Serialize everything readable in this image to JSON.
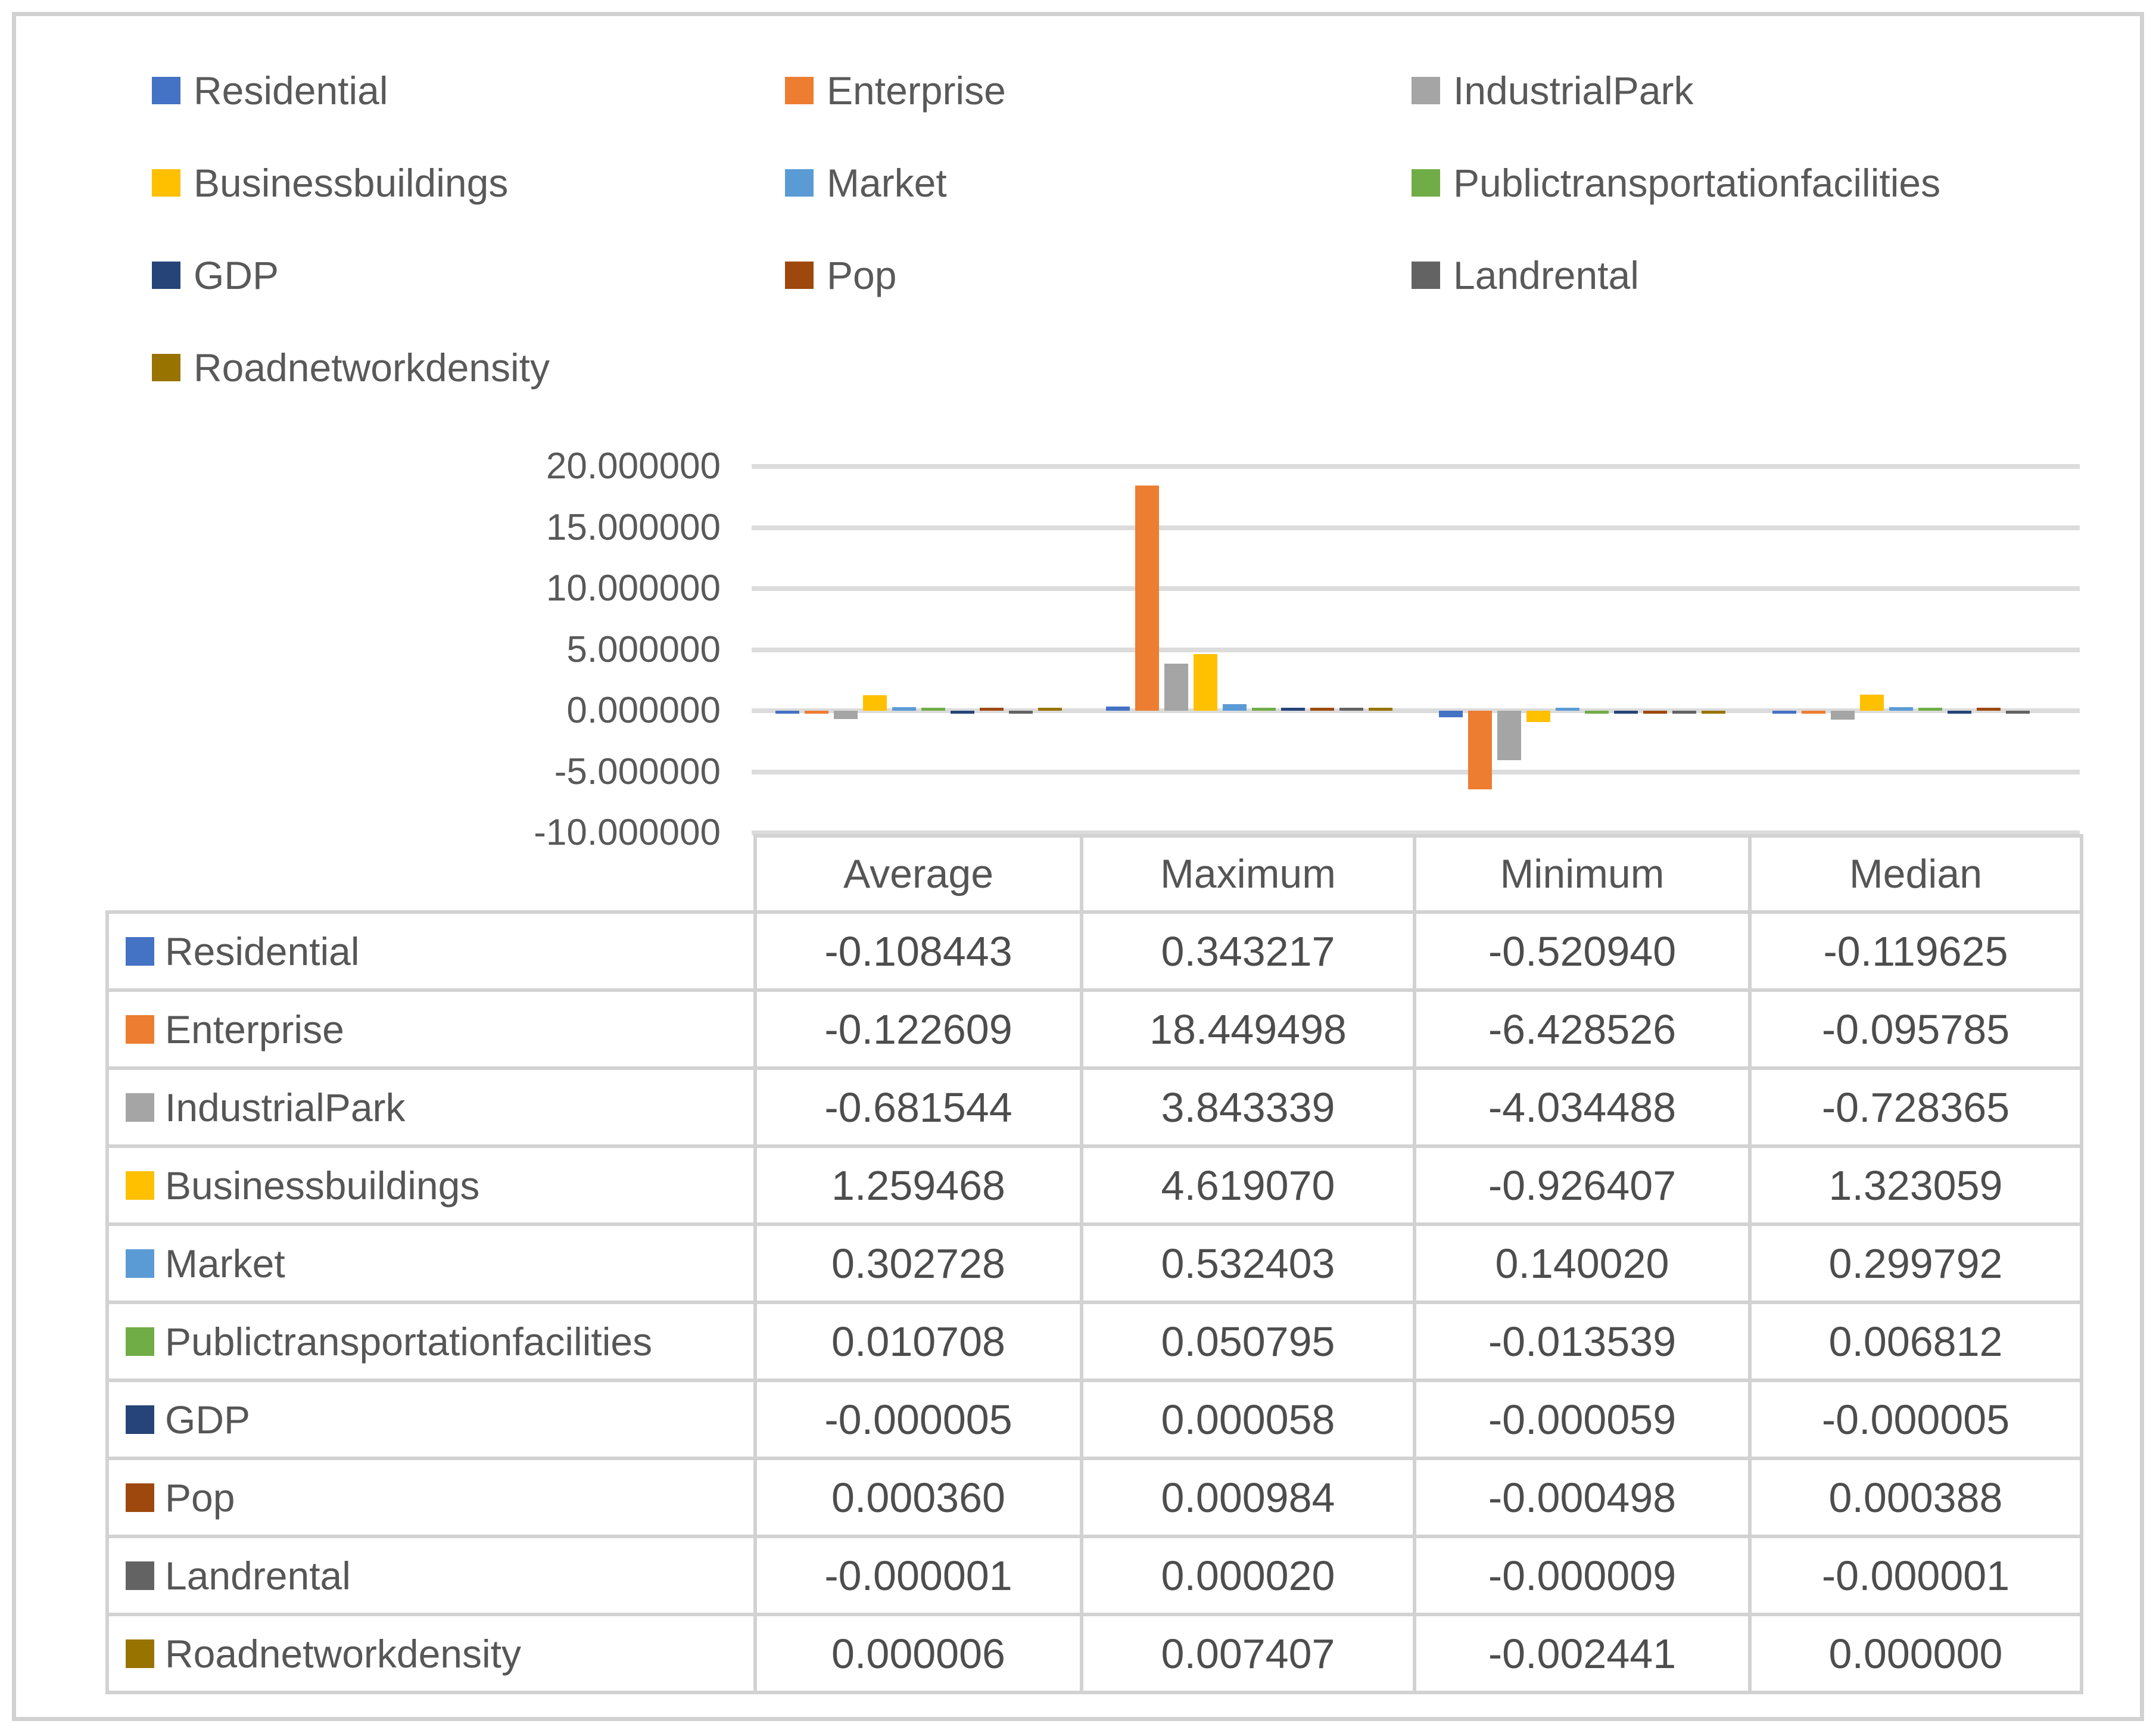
{
  "style": {
    "frame_border_color": "#d1d1d1",
    "gridline_color": "#dcdcdc",
    "table_border_color": "#d2d2d2",
    "text_color": "#595959"
  },
  "legend": {
    "items": [
      {
        "label": "Residential",
        "color": "#4472C4"
      },
      {
        "label": "Enterprise",
        "color": "#ED7D31"
      },
      {
        "label": "IndustrialPark",
        "color": "#A5A5A5"
      },
      {
        "label": "Businessbuildings",
        "color": "#FFC000"
      },
      {
        "label": "Market",
        "color": "#5B9BD5"
      },
      {
        "label": "Publictransportationfacilities",
        "color": "#70AD47"
      },
      {
        "label": "GDP",
        "color": "#264478"
      },
      {
        "label": "Pop",
        "color": "#9E480E"
      },
      {
        "label": "Landrental",
        "color": "#636363"
      },
      {
        "label": "Roadnetworkdensity",
        "color": "#997300"
      }
    ]
  },
  "chart_data": {
    "type": "bar",
    "title": "",
    "xlabel": "",
    "ylabel": "",
    "categories": [
      "Average",
      "Maximum",
      "Minimum",
      "Median"
    ],
    "ylim": [
      -10,
      20
    ],
    "yticks": [
      "20.000000",
      "15.000000",
      "10.000000",
      "5.000000",
      "0.000000",
      "-5.000000",
      "-10.000000"
    ],
    "grid": true,
    "legend_position": "top",
    "series": [
      {
        "name": "Residential",
        "color": "#4472C4",
        "values": [
          -0.108443,
          0.343217,
          -0.52094,
          -0.119625
        ]
      },
      {
        "name": "Enterprise",
        "color": "#ED7D31",
        "values": [
          -0.122609,
          18.449498,
          -6.428526,
          -0.095785
        ]
      },
      {
        "name": "IndustrialPark",
        "color": "#A5A5A5",
        "values": [
          -0.681544,
          3.843339,
          -4.034488,
          -0.728365
        ]
      },
      {
        "name": "Businessbuildings",
        "color": "#FFC000",
        "values": [
          1.259468,
          4.61907,
          -0.926407,
          1.323059
        ]
      },
      {
        "name": "Market",
        "color": "#5B9BD5",
        "values": [
          0.302728,
          0.532403,
          0.14002,
          0.299792
        ]
      },
      {
        "name": "Publictransportationfacilities",
        "color": "#70AD47",
        "values": [
          0.010708,
          0.050795,
          -0.013539,
          0.006812
        ]
      },
      {
        "name": "GDP",
        "color": "#264478",
        "values": [
          -5e-06,
          5.8e-05,
          -5.9e-05,
          -5e-06
        ]
      },
      {
        "name": "Pop",
        "color": "#9E480E",
        "values": [
          0.00036,
          0.000984,
          -0.000498,
          0.000388
        ]
      },
      {
        "name": "Landrental",
        "color": "#636363",
        "values": [
          -1e-06,
          2e-05,
          -9e-06,
          -1e-06
        ]
      },
      {
        "name": "Roadnetworkdensity",
        "color": "#997300",
        "values": [
          6e-06,
          0.007407,
          -0.002441,
          0.0
        ]
      }
    ]
  },
  "table": {
    "columns": [
      "Average",
      "Maximum",
      "Minimum",
      "Median"
    ],
    "rows": [
      {
        "label": "Residential",
        "color": "#4472C4",
        "values": [
          "-0.108443",
          "0.343217",
          "-0.520940",
          "-0.119625"
        ]
      },
      {
        "label": "Enterprise",
        "color": "#ED7D31",
        "values": [
          "-0.122609",
          "18.449498",
          "-6.428526",
          "-0.095785"
        ]
      },
      {
        "label": "IndustrialPark",
        "color": "#A5A5A5",
        "values": [
          "-0.681544",
          "3.843339",
          "-4.034488",
          "-0.728365"
        ]
      },
      {
        "label": "Businessbuildings",
        "color": "#FFC000",
        "values": [
          "1.259468",
          "4.619070",
          "-0.926407",
          "1.323059"
        ]
      },
      {
        "label": "Market",
        "color": "#5B9BD5",
        "values": [
          "0.302728",
          "0.532403",
          "0.140020",
          "0.299792"
        ]
      },
      {
        "label": "Publictransportationfacilities",
        "color": "#70AD47",
        "values": [
          "0.010708",
          "0.050795",
          "-0.013539",
          "0.006812"
        ]
      },
      {
        "label": "GDP",
        "color": "#264478",
        "values": [
          "-0.000005",
          "0.000058",
          "-0.000059",
          "-0.000005"
        ]
      },
      {
        "label": "Pop",
        "color": "#9E480E",
        "values": [
          "0.000360",
          "0.000984",
          "-0.000498",
          "0.000388"
        ]
      },
      {
        "label": "Landrental",
        "color": "#636363",
        "values": [
          "-0.000001",
          "0.000020",
          "-0.000009",
          "-0.000001"
        ]
      },
      {
        "label": "Roadnetworkdensity",
        "color": "#997300",
        "values": [
          "0.000006",
          "0.007407",
          "-0.002441",
          "0.000000"
        ]
      }
    ]
  }
}
